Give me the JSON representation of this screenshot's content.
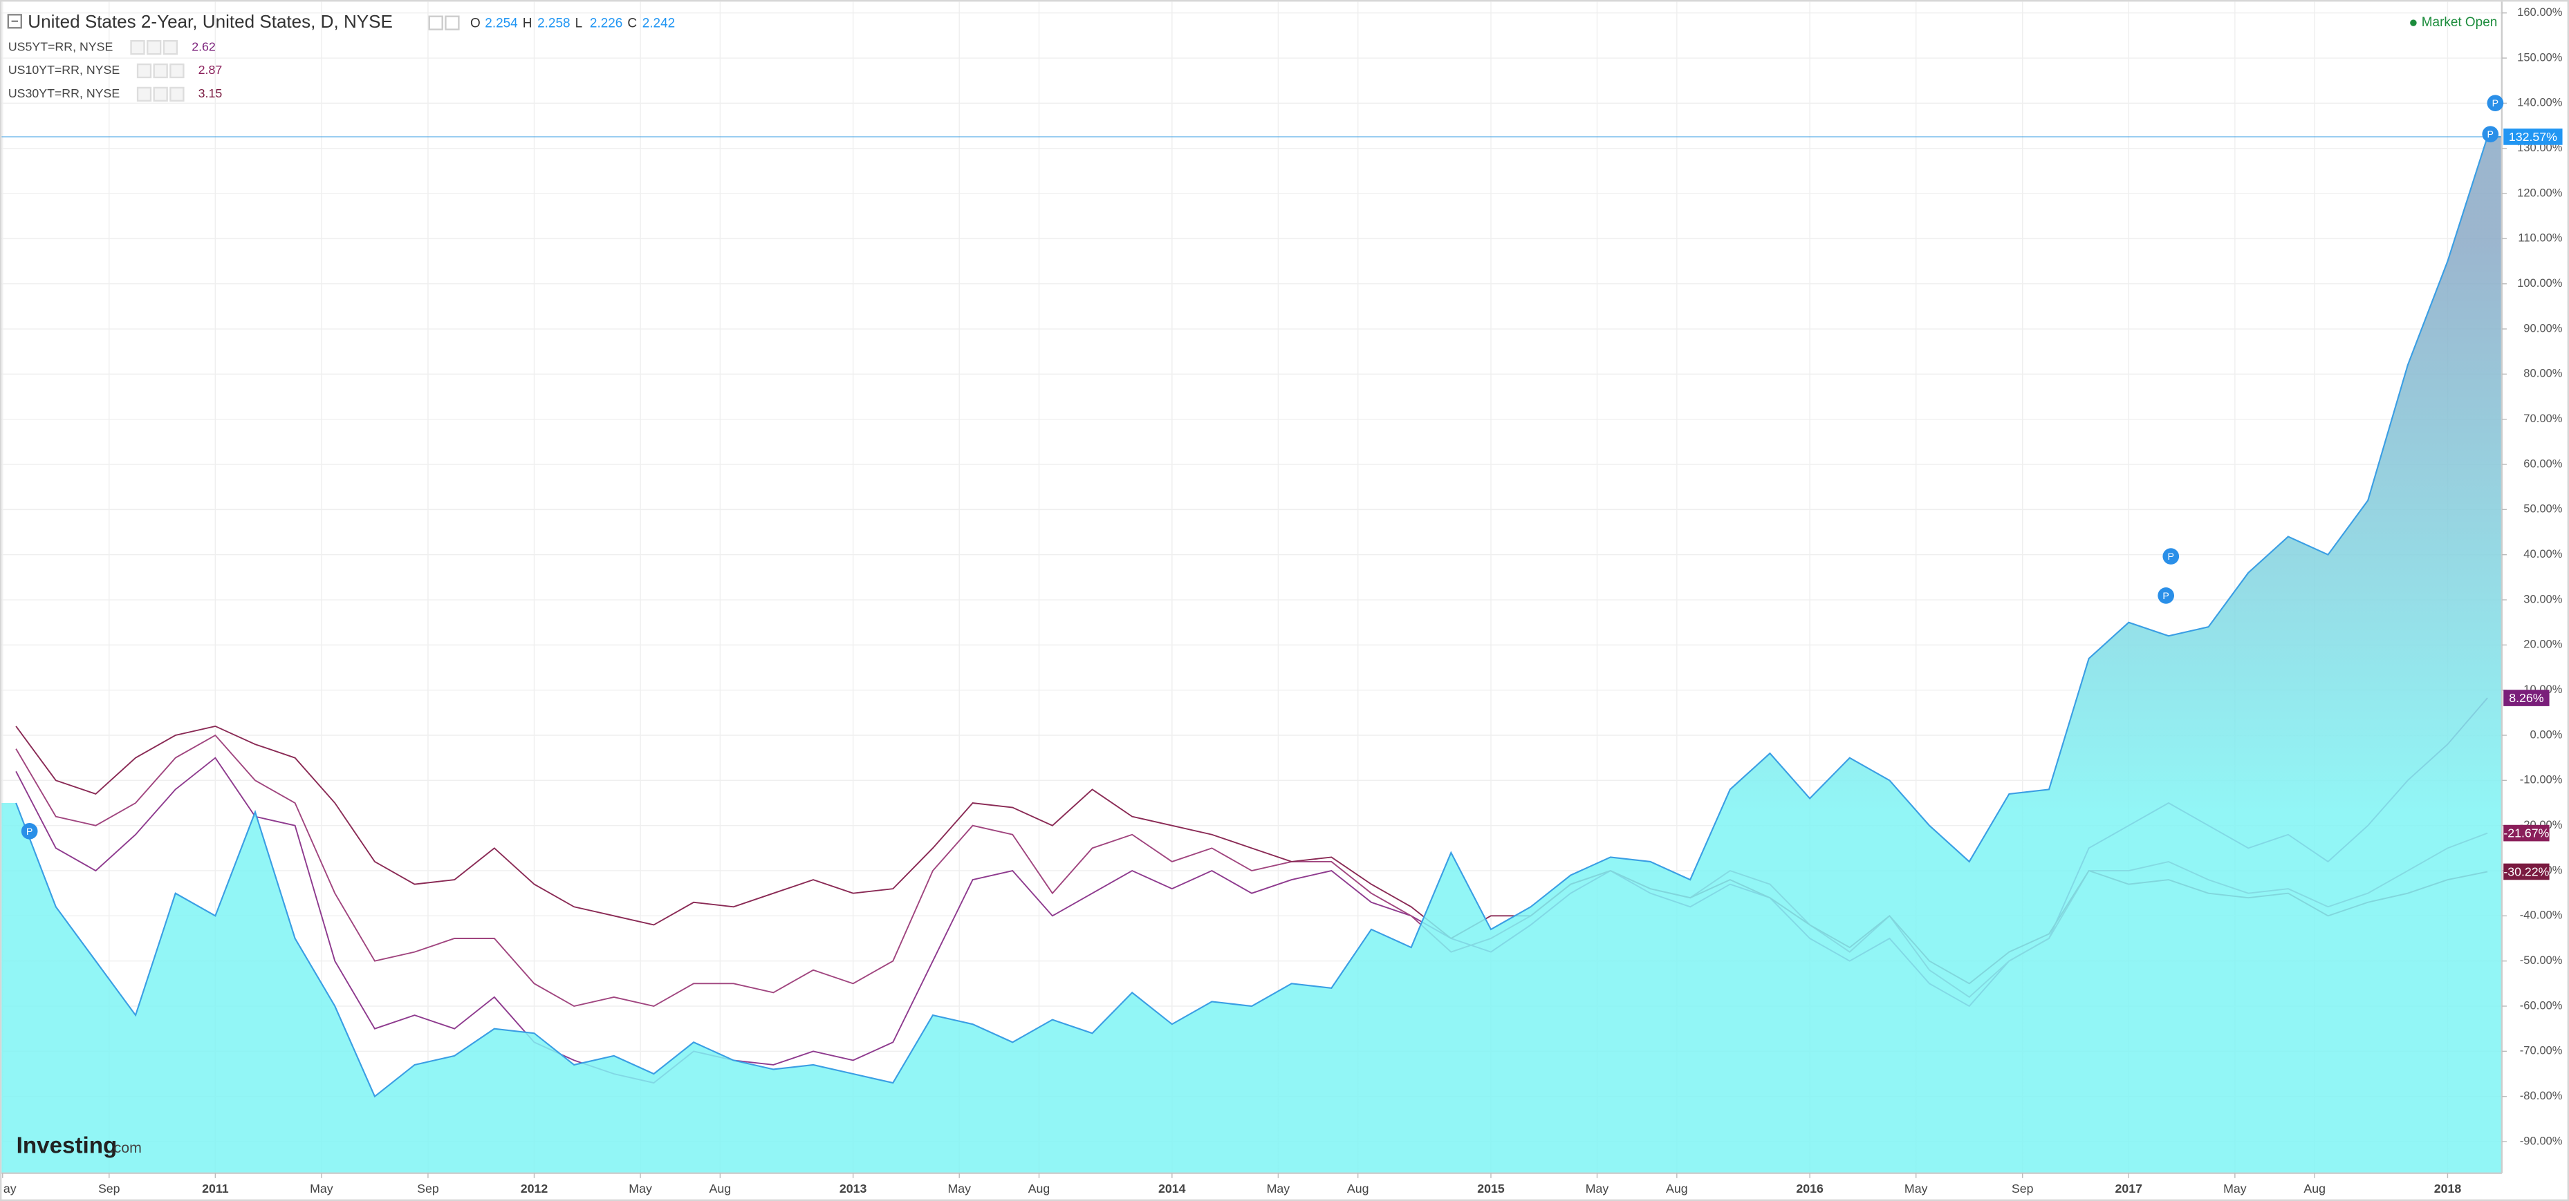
{
  "chart_data": {
    "type": "line",
    "title": "United States 2-Year, United States, D, NYSE",
    "ohlc": [
      {
        "label": "O",
        "value": 2.254
      },
      {
        "label": "H",
        "value": 2.258
      },
      {
        "label": "L",
        "value": 2.226
      },
      {
        "label": "C",
        "value": 2.242
      }
    ],
    "status": "Market Open",
    "logo": {
      "brand": "Investing",
      "suffix": ".com"
    },
    "grid": true,
    "xlim": [
      2010.33,
      2018.17
    ],
    "ylim": [
      -97,
      162.5
    ],
    "xticks": [
      {
        "value": 2010.333,
        "label": "ay"
      },
      {
        "value": 2010.667,
        "label": "Sep"
      },
      2011,
      {
        "value": 2011.333,
        "label": "May"
      },
      {
        "value": 2011.667,
        "label": "Sep"
      },
      2012,
      {
        "value": 2012.333,
        "label": "May"
      },
      {
        "value": 2012.583,
        "label": "Aug"
      },
      2013,
      {
        "value": 2013.333,
        "label": "May"
      },
      {
        "value": 2013.583,
        "label": "Aug"
      },
      2014,
      {
        "value": 2014.333,
        "label": "May"
      },
      {
        "value": 2014.583,
        "label": "Aug"
      },
      2015,
      {
        "value": 2015.333,
        "label": "May"
      },
      {
        "value": 2015.583,
        "label": "Aug"
      },
      2016,
      {
        "value": 2016.333,
        "label": "May"
      },
      {
        "value": 2016.667,
        "label": "Sep"
      },
      2017,
      {
        "value": 2017.333,
        "label": "May"
      },
      {
        "value": 2017.583,
        "label": "Aug"
      },
      2018
    ],
    "yticks": [
      {
        "value": -90,
        "label": "-90.00%"
      },
      {
        "value": -80,
        "label": "-80.00%"
      },
      {
        "value": -70,
        "label": "-70.00%"
      },
      {
        "value": -60,
        "label": "-60.00%"
      },
      {
        "value": -50,
        "label": "-50.00%"
      },
      {
        "value": -40,
        "label": "-40.00%"
      },
      {
        "value": -30,
        "label": "-30.00%"
      },
      {
        "value": -20,
        "label": "-20.00%"
      },
      {
        "value": -10,
        "label": "-10.00%"
      },
      {
        "value": 0,
        "label": "0.00%"
      },
      {
        "value": 10,
        "label": "10.00%"
      },
      {
        "value": 20,
        "label": "20.00%"
      },
      {
        "value": 30,
        "label": "30.00%"
      },
      {
        "value": 40,
        "label": "40.00%"
      },
      {
        "value": 50,
        "label": "50.00%"
      },
      {
        "value": 60,
        "label": "60.00%"
      },
      {
        "value": 70,
        "label": "70.00%"
      },
      {
        "value": 80,
        "label": "80.00%"
      },
      {
        "value": 90,
        "label": "90.00%"
      },
      {
        "value": 100,
        "label": "100.00%"
      },
      {
        "value": 110,
        "label": "110.00%"
      },
      {
        "value": 120,
        "label": "120.00%"
      },
      {
        "value": 130,
        "label": "130.00%"
      },
      {
        "value": 140,
        "label": "140.00%"
      },
      {
        "value": 150,
        "label": "150.00%"
      },
      {
        "value": 160,
        "label": "160.00%"
      }
    ],
    "x": [
      2010.375,
      2010.5,
      2010.625,
      2010.75,
      2010.875,
      2011,
      2011.125,
      2011.25,
      2011.375,
      2011.5,
      2011.625,
      2011.75,
      2011.875,
      2012,
      2012.125,
      2012.25,
      2012.375,
      2012.5,
      2012.625,
      2012.75,
      2012.875,
      2013,
      2013.125,
      2013.25,
      2013.375,
      2013.5,
      2013.625,
      2013.75,
      2013.875,
      2014,
      2014.125,
      2014.25,
      2014.375,
      2014.5,
      2014.625,
      2014.75,
      2014.875,
      2015,
      2015.125,
      2015.25,
      2015.375,
      2015.5,
      2015.625,
      2015.75,
      2015.875,
      2016,
      2016.125,
      2016.25,
      2016.375,
      2016.5,
      2016.625,
      2016.75,
      2016.875,
      2017,
      2017.125,
      2017.25,
      2017.375,
      2017.5,
      2017.625,
      2017.75,
      2017.875,
      2018,
      2018.125
    ],
    "series": [
      {
        "area": true,
        "color": "#3a9ee4",
        "fill_colors": [
          "#8aa9c6",
          "#7ff4f4"
        ],
        "value_label": "132.57%",
        "label_color": "#2196f3",
        "values": [
          -15,
          -38,
          -50,
          -62,
          -35,
          -40,
          -17,
          -45,
          -60,
          -80,
          -73,
          -71,
          -65,
          -66,
          -73,
          -71,
          -75,
          -68,
          -72,
          -74,
          -73,
          -75,
          -77,
          -62,
          -64,
          -68,
          -63,
          -66,
          -57,
          -64,
          -59,
          -60,
          -55,
          -56,
          -43,
          -47,
          -26,
          -43,
          -38,
          -31,
          -27,
          -28,
          -32,
          -12,
          -4,
          -14,
          -5,
          -10,
          -20,
          -28,
          -13,
          -12,
          17,
          25,
          22,
          24,
          36,
          44,
          40,
          52,
          82,
          105,
          132.57
        ]
      },
      {
        "name": "US5YT=RR, NYSE",
        "legend_value": 2.62,
        "color": "#8e3a8e",
        "value_label": "8.26%",
        "label_color": "#7a1f7a",
        "values": [
          -8,
          -25,
          -30,
          -22,
          -12,
          -5,
          -18,
          -20,
          -50,
          -65,
          -62,
          -65,
          -58,
          -68,
          -72,
          -75,
          -77,
          -70,
          -72,
          -73,
          -70,
          -72,
          -68,
          -50,
          -32,
          -30,
          -40,
          -35,
          -30,
          -34,
          -30,
          -35,
          -32,
          -30,
          -37,
          -40,
          -45,
          -48,
          -42,
          -35,
          -30,
          -35,
          -38,
          -33,
          -36,
          -45,
          -50,
          -45,
          -55,
          -60,
          -50,
          -45,
          -25,
          -20,
          -15,
          -20,
          -25,
          -22,
          -28,
          -20,
          -10,
          -2,
          8.26
        ]
      },
      {
        "name": "US10YT=RR, NYSE",
        "legend_value": 2.87,
        "color": "#a0457f",
        "value_label": "-21.67%",
        "label_color": "#8a1e5a",
        "values": [
          -3,
          -18,
          -20,
          -15,
          -5,
          0,
          -10,
          -15,
          -35,
          -50,
          -48,
          -45,
          -45,
          -55,
          -60,
          -58,
          -60,
          -55,
          -55,
          -57,
          -52,
          -55,
          -50,
          -30,
          -20,
          -22,
          -35,
          -25,
          -22,
          -28,
          -25,
          -30,
          -28,
          -28,
          -35,
          -40,
          -48,
          -45,
          -40,
          -33,
          -30,
          -34,
          -36,
          -30,
          -33,
          -42,
          -48,
          -40,
          -52,
          -58,
          -50,
          -45,
          -30,
          -30,
          -28,
          -32,
          -35,
          -34,
          -38,
          -35,
          -30,
          -25,
          -21.67
        ]
      },
      {
        "name": "US30YT=RR, NYSE",
        "legend_value": 3.15,
        "color": "#8a2a55",
        "value_label": "-30.22%",
        "label_color": "#7a1a40",
        "values": [
          2,
          -10,
          -13,
          -5,
          0,
          2,
          -2,
          -5,
          -15,
          -28,
          -33,
          -32,
          -25,
          -33,
          -38,
          -40,
          -42,
          -37,
          -38,
          -35,
          -32,
          -35,
          -34,
          -25,
          -15,
          -16,
          -20,
          -12,
          -18,
          -20,
          -22,
          -25,
          -28,
          -27,
          -33,
          -38,
          -45,
          -40,
          -40,
          -33,
          -30,
          -34,
          -36,
          -32,
          -36,
          -42,
          -47,
          -40,
          -50,
          -55,
          -48,
          -44,
          -30,
          -33,
          -32,
          -35,
          -36,
          -35,
          -40,
          -37,
          -35,
          -32,
          -30.22
        ]
      }
    ]
  }
}
